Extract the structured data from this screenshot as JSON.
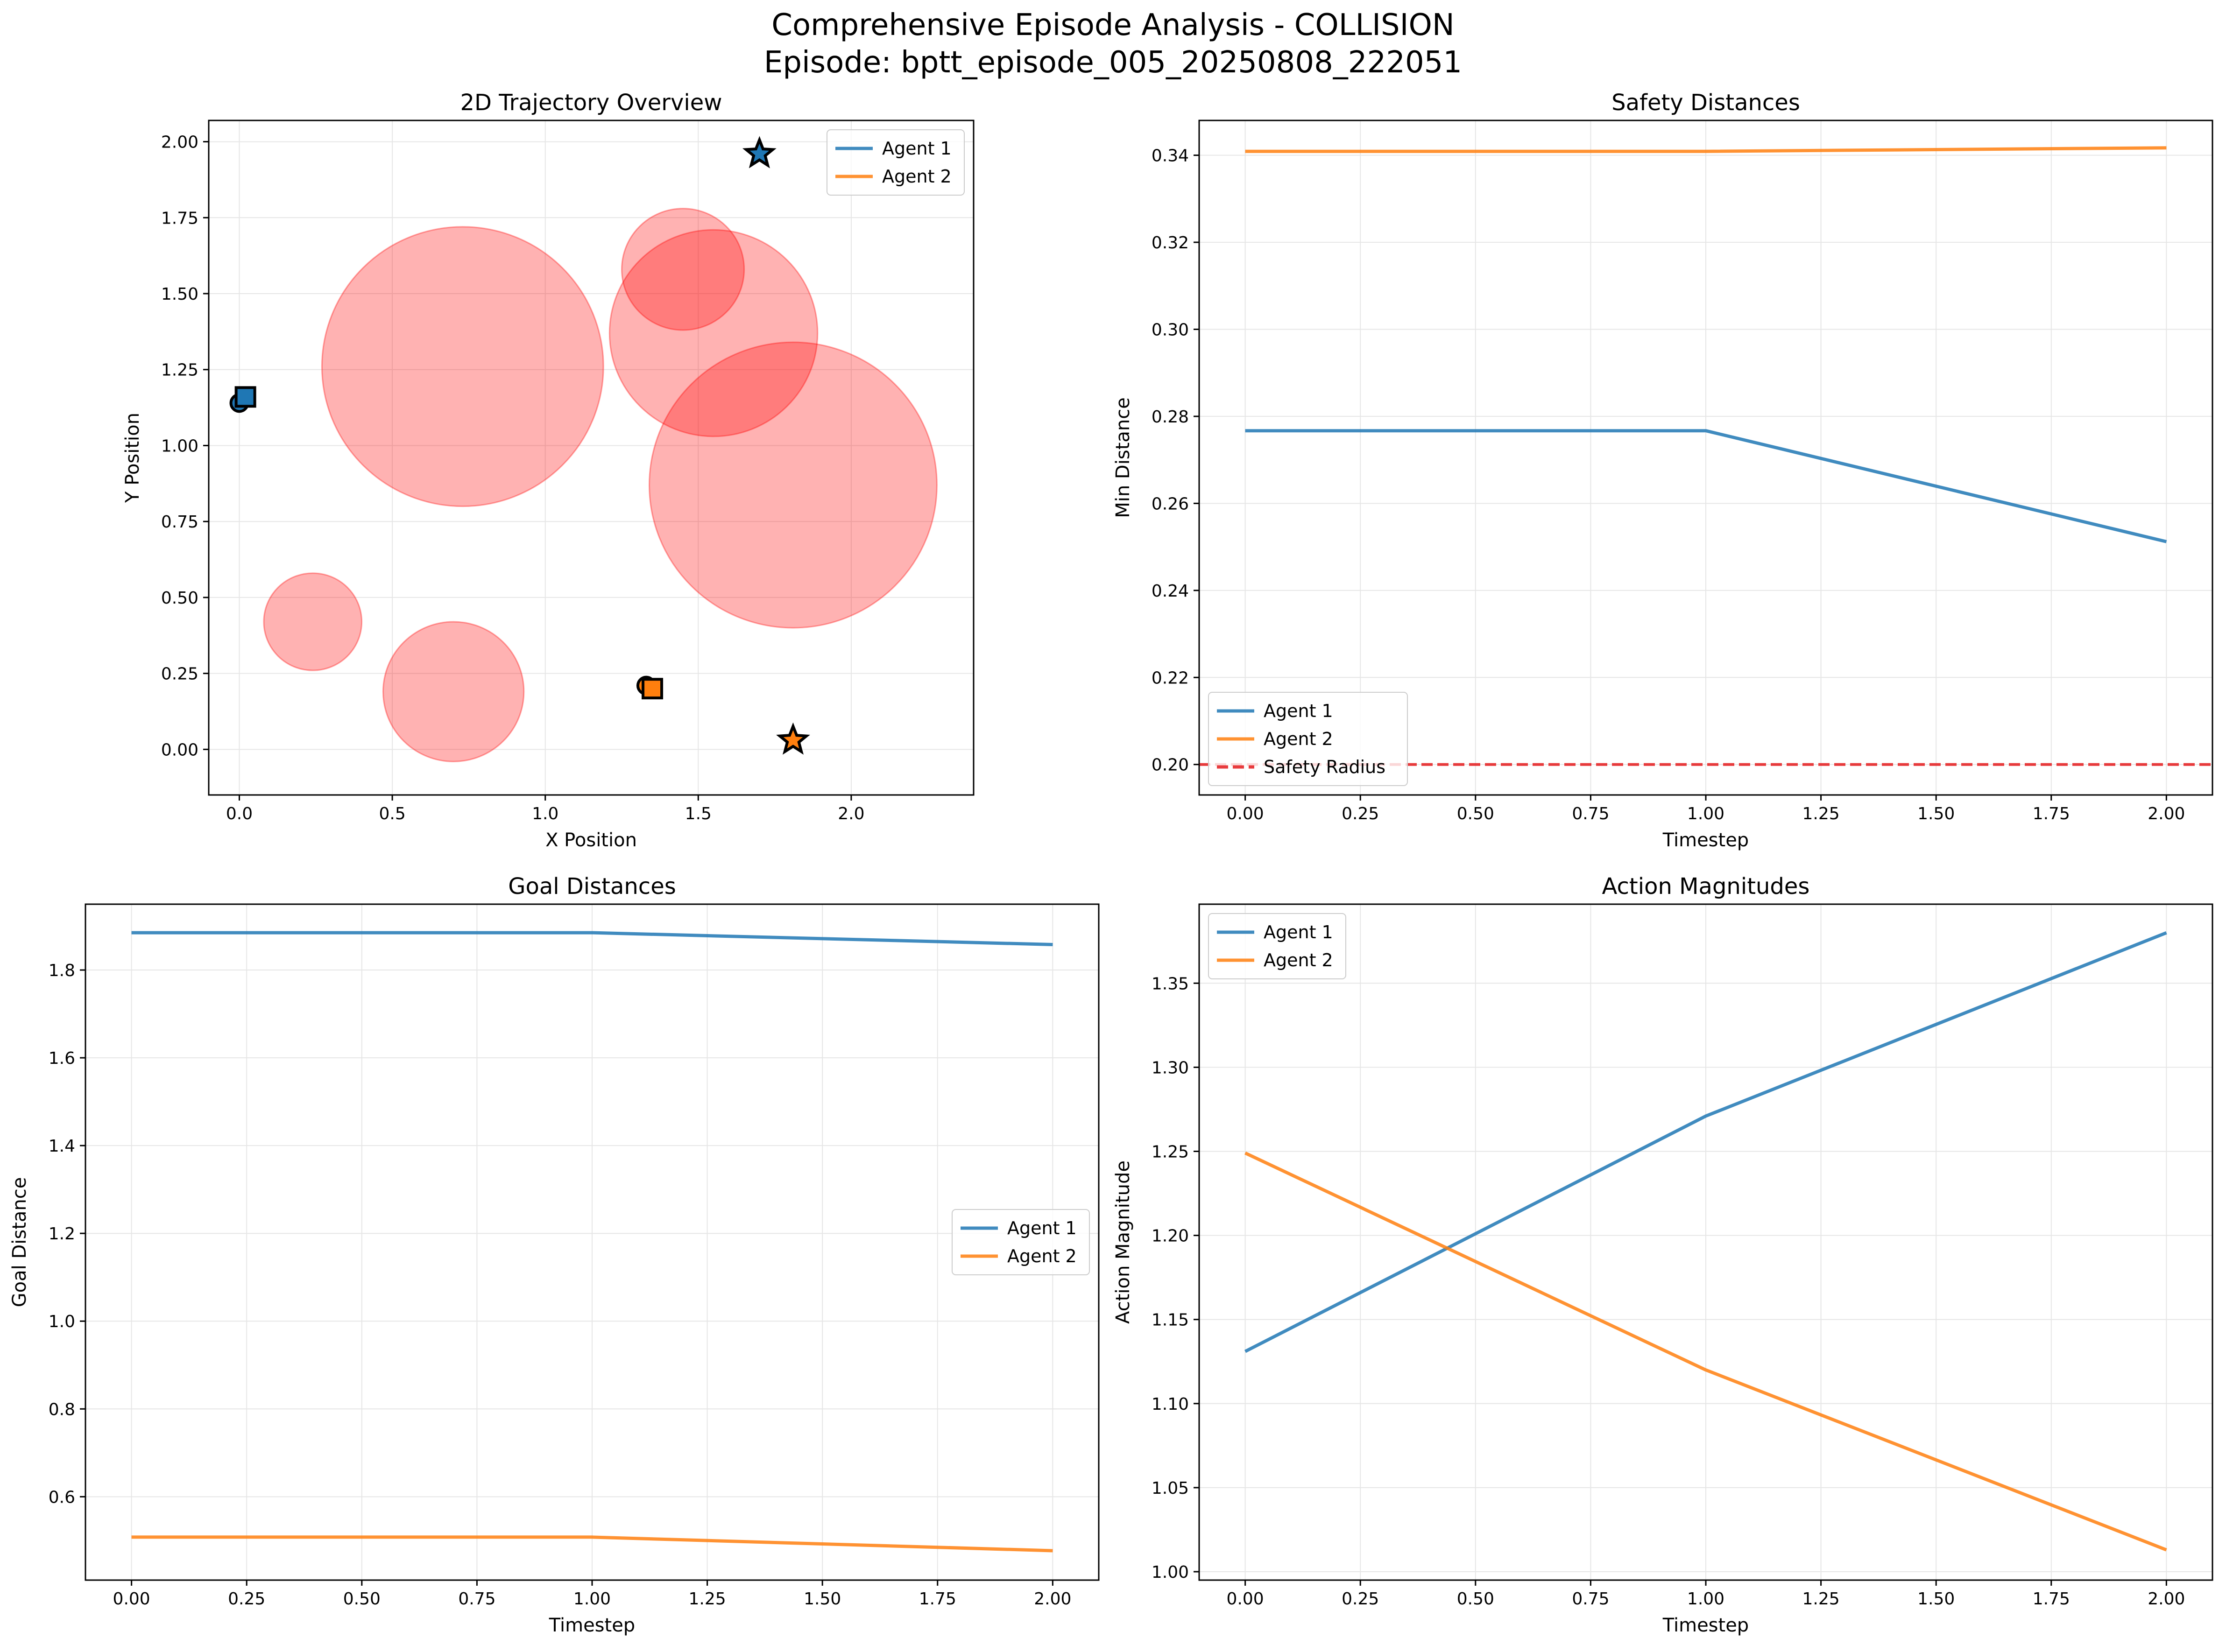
{
  "figure": {
    "title_line1": "Comprehensive Episode Analysis - COLLISION",
    "title_line2": "Episode: bptt_episode_005_20250808_222051"
  },
  "colors": {
    "agent1": "#1f77b4",
    "agent2": "#ff7f0e",
    "obstacle": "#ff0000",
    "safety": "#e41a1c",
    "grid": "#e6e6e6"
  },
  "chart_data": [
    {
      "id": "trajectory",
      "type": "scatter",
      "title": "2D Trajectory Overview",
      "xlabel": "X Position",
      "ylabel": "Y Position",
      "xlim": [
        -0.1,
        2.4
      ],
      "ylim": [
        -0.15,
        2.07
      ],
      "xticks": [
        0.0,
        0.5,
        1.0,
        1.5,
        2.0
      ],
      "xtick_labels": [
        "0.0",
        "0.5",
        "1.0",
        "1.5",
        "2.0"
      ],
      "yticks": [
        0.0,
        0.25,
        0.5,
        0.75,
        1.0,
        1.25,
        1.5,
        1.75,
        2.0
      ],
      "ytick_labels": [
        "0.00",
        "0.25",
        "0.50",
        "0.75",
        "1.00",
        "1.25",
        "1.50",
        "1.75",
        "2.00"
      ],
      "grid": true,
      "legend_position": "upper right",
      "obstacles": [
        {
          "x": 0.73,
          "y": 1.26,
          "r": 0.46
        },
        {
          "x": 1.55,
          "y": 1.37,
          "r": 0.34
        },
        {
          "x": 1.45,
          "y": 1.58,
          "r": 0.2
        },
        {
          "x": 1.81,
          "y": 0.87,
          "r": 0.47
        },
        {
          "x": 0.24,
          "y": 0.42,
          "r": 0.16
        },
        {
          "x": 0.7,
          "y": 0.19,
          "r": 0.23
        }
      ],
      "series": [
        {
          "name": "Agent 1",
          "color": "#1f77b4",
          "start": {
            "x": 0.0,
            "y": 1.14
          },
          "end": {
            "x": 0.02,
            "y": 1.16
          },
          "goal": {
            "x": 1.7,
            "y": 1.96
          }
        },
        {
          "name": "Agent 2",
          "color": "#ff7f0e",
          "start": {
            "x": 1.33,
            "y": 0.21
          },
          "end": {
            "x": 1.35,
            "y": 0.2
          },
          "goal": {
            "x": 1.81,
            "y": 0.03
          }
        }
      ]
    },
    {
      "id": "safety",
      "type": "line",
      "title": "Safety Distances",
      "xlabel": "Timestep",
      "ylabel": "Min Distance",
      "xlim": [
        -0.1,
        2.1
      ],
      "ylim": [
        0.193,
        0.348
      ],
      "xticks": [
        0.0,
        0.25,
        0.5,
        0.75,
        1.0,
        1.25,
        1.5,
        1.75,
        2.0
      ],
      "xtick_labels": [
        "0.00",
        "0.25",
        "0.50",
        "0.75",
        "1.00",
        "1.25",
        "1.50",
        "1.75",
        "2.00"
      ],
      "yticks": [
        0.2,
        0.22,
        0.24,
        0.26,
        0.28,
        0.3,
        0.32,
        0.34
      ],
      "ytick_labels": [
        "0.20",
        "0.22",
        "0.24",
        "0.26",
        "0.28",
        "0.30",
        "0.32",
        "0.34"
      ],
      "grid": true,
      "legend_position": "lower left",
      "x": [
        0,
        1,
        2
      ],
      "series": [
        {
          "name": "Agent 1",
          "color": "#1f77b4",
          "values": [
            0.2767,
            0.2767,
            0.2512
          ]
        },
        {
          "name": "Agent 2",
          "color": "#ff7f0e",
          "values": [
            0.3409,
            0.3409,
            0.3417
          ]
        }
      ],
      "reference_line": {
        "name": "Safety Radius",
        "y": 0.2,
        "color": "#e41a1c"
      }
    },
    {
      "id": "goal",
      "type": "line",
      "title": "Goal Distances",
      "xlabel": "Timestep",
      "ylabel": "Goal Distance",
      "xlim": [
        -0.1,
        2.1
      ],
      "ylim": [
        0.41,
        1.95
      ],
      "xticks": [
        0.0,
        0.25,
        0.5,
        0.75,
        1.0,
        1.25,
        1.5,
        1.75,
        2.0
      ],
      "xtick_labels": [
        "0.00",
        "0.25",
        "0.50",
        "0.75",
        "1.00",
        "1.25",
        "1.50",
        "1.75",
        "2.00"
      ],
      "yticks": [
        0.6,
        0.8,
        1.0,
        1.2,
        1.4,
        1.6,
        1.8
      ],
      "ytick_labels": [
        "0.6",
        "0.8",
        "1.0",
        "1.2",
        "1.4",
        "1.6",
        "1.8"
      ],
      "grid": true,
      "legend_position": "center right",
      "x": [
        0,
        1,
        2
      ],
      "series": [
        {
          "name": "Agent 1",
          "color": "#1f77b4",
          "values": [
            1.885,
            1.885,
            1.858
          ]
        },
        {
          "name": "Agent 2",
          "color": "#ff7f0e",
          "values": [
            0.508,
            0.508,
            0.477
          ]
        }
      ]
    },
    {
      "id": "action",
      "type": "line",
      "title": "Action Magnitudes",
      "xlabel": "Timestep",
      "ylabel": "Action Magnitude",
      "xlim": [
        -0.1,
        2.1
      ],
      "ylim": [
        0.995,
        1.397
      ],
      "xticks": [
        0.0,
        0.25,
        0.5,
        0.75,
        1.0,
        1.25,
        1.5,
        1.75,
        2.0
      ],
      "xtick_labels": [
        "0.00",
        "0.25",
        "0.50",
        "0.75",
        "1.00",
        "1.25",
        "1.50",
        "1.75",
        "2.00"
      ],
      "yticks": [
        1.0,
        1.05,
        1.1,
        1.15,
        1.2,
        1.25,
        1.3,
        1.35
      ],
      "ytick_labels": [
        "1.00",
        "1.05",
        "1.10",
        "1.15",
        "1.20",
        "1.25",
        "1.30",
        "1.35"
      ],
      "grid": true,
      "legend_position": "upper left",
      "x": [
        0,
        1,
        2
      ],
      "series": [
        {
          "name": "Agent 1",
          "color": "#1f77b4",
          "values": [
            1.131,
            1.271,
            1.38
          ]
        },
        {
          "name": "Agent 2",
          "color": "#ff7f0e",
          "values": [
            1.249,
            1.12,
            1.013
          ]
        }
      ]
    }
  ]
}
